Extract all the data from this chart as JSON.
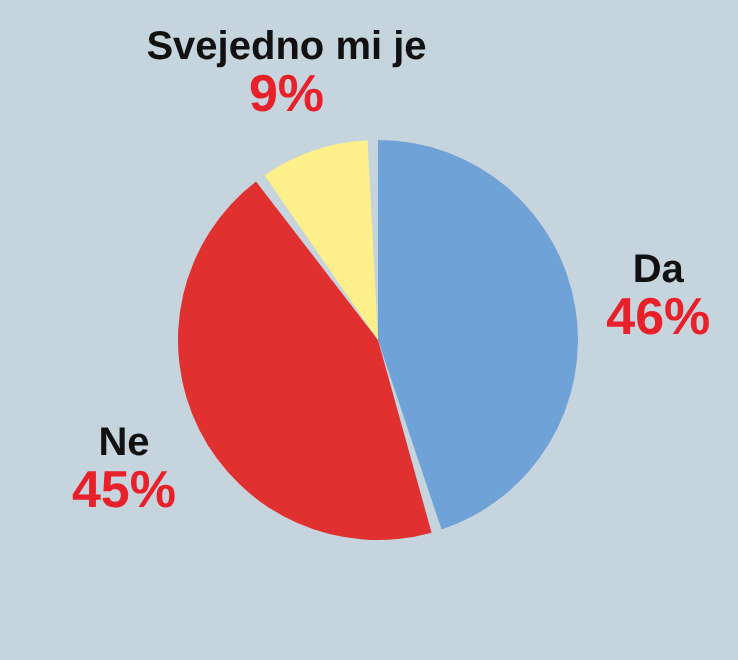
{
  "chart_data": {
    "type": "pie",
    "categories": [
      "Da",
      "Ne",
      "Svejedno mi je"
    ],
    "values": [
      46,
      45,
      9
    ],
    "colors": [
      "#6fa3d8",
      "#e03030",
      "#fdf08a"
    ],
    "value_labels": [
      "46%",
      "45%",
      "9%"
    ]
  }
}
